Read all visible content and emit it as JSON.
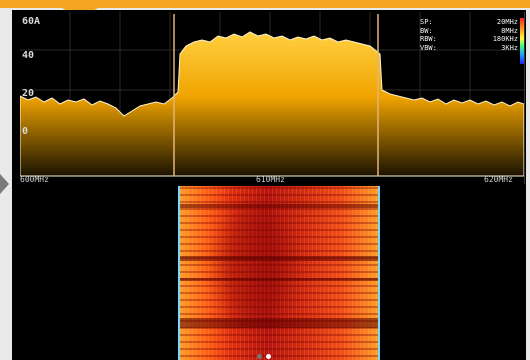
{
  "spectrum": {
    "y_axis": {
      "top_label": "60A",
      "labels": [
        "40",
        "20",
        "0"
      ]
    },
    "frequency_axis": {
      "left_label": "600MHz",
      "center_label": "610MHz",
      "right_label": "620MHz"
    },
    "info": {
      "rows": [
        {
          "key": "SP:",
          "value": "20MHz"
        },
        {
          "key": "BW:",
          "value": "8MHz"
        },
        {
          "key": "RBW:",
          "value": "180KHz"
        },
        {
          "key": "VBW:",
          "value": "3KHz"
        }
      ]
    },
    "colors": {
      "trace_fill": "#f6b000",
      "trace_line": "#ffffff",
      "grid": "#2a2a2a",
      "marker": "#e5b47a"
    }
  },
  "waterfall": {
    "label": ""
  },
  "pager": {
    "pages": 2,
    "active_page": 2
  }
}
